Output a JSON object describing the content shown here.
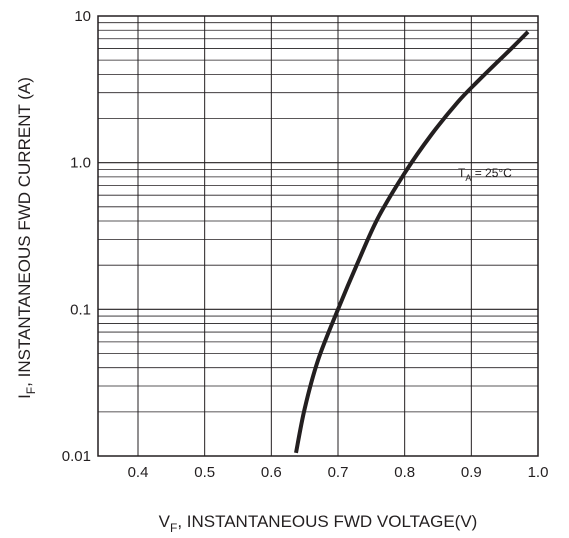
{
  "chart_data": {
    "type": "line",
    "x_axis": {
      "main": "V",
      "sub": "F",
      "rest": ", INSTANTANEOUS FWD VOLTAGE(V)",
      "range": [
        0.34,
        1.0
      ],
      "ticks": [
        0.4,
        0.5,
        0.6,
        0.7,
        0.8,
        0.9,
        1.0
      ],
      "tick_labels": [
        "0.4",
        "0.5",
        "0.6",
        "0.7",
        "0.8",
        "0.9",
        "1.0"
      ],
      "scale": "linear"
    },
    "y_axis": {
      "main": "I",
      "sub": "F",
      "rest": ", INSTANTANEOUS FWD CURRENT (A)",
      "range": [
        0.01,
        10
      ],
      "ticks": [
        0.01,
        0.1,
        1,
        10
      ],
      "tick_labels": [
        "0.01",
        "0.1",
        "1.0",
        "10"
      ],
      "scale": "log"
    },
    "grid": true,
    "annotation": {
      "main": "T",
      "sub": "A",
      "rest": " =  25°C",
      "x": 0.97,
      "y": 0.85
    },
    "series": [
      {
        "color": "#231f20",
        "points": [
          {
            "x": 0.637,
            "y": 0.0105
          },
          {
            "x": 0.65,
            "y": 0.021
          },
          {
            "x": 0.67,
            "y": 0.045
          },
          {
            "x": 0.7,
            "y": 0.1
          },
          {
            "x": 0.73,
            "y": 0.21
          },
          {
            "x": 0.76,
            "y": 0.42
          },
          {
            "x": 0.8,
            "y": 0.85
          },
          {
            "x": 0.84,
            "y": 1.55
          },
          {
            "x": 0.88,
            "y": 2.6
          },
          {
            "x": 0.91,
            "y": 3.6
          },
          {
            "x": 0.94,
            "y": 4.9
          },
          {
            "x": 0.96,
            "y": 6.0
          },
          {
            "x": 0.985,
            "y": 7.8
          }
        ]
      }
    ]
  }
}
